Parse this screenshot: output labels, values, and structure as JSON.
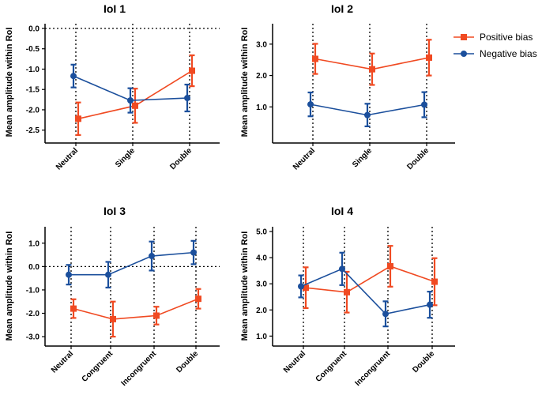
{
  "legend": {
    "positive_label": "Positive bias",
    "negative_label": "Negative bias",
    "position": "top-right"
  },
  "colors": {
    "positive": "#f04a22",
    "negative": "#1b4f9c"
  },
  "chart_data": [
    {
      "type": "line",
      "title": "IoI 1",
      "ylabel": "Mean amplitude within RoI",
      "categories": [
        "Neutral",
        "Single",
        "Double"
      ],
      "ylim": [
        -2.7,
        0
      ],
      "yticks": [
        0.0,
        -0.5,
        -1.0,
        -1.5,
        -2.0,
        -2.5
      ],
      "ytick_labels": [
        "0.0",
        "-0.5",
        "-1.0",
        "-1.5",
        "-2.0",
        "-2.5"
      ],
      "zero_line": true,
      "series": [
        {
          "name": "Positive bias",
          "values": [
            -2.22,
            -1.9,
            -1.04
          ],
          "errors": [
            0.4,
            0.42,
            0.38
          ]
        },
        {
          "name": "Negative bias",
          "values": [
            -1.17,
            -1.77,
            -1.71
          ],
          "errors": [
            0.28,
            0.3,
            0.33
          ]
        }
      ]
    },
    {
      "type": "line",
      "title": "IoI 2",
      "ylabel": "Mean amplitude within RoI",
      "categories": [
        "Neutral",
        "Single",
        "Double"
      ],
      "ylim": [
        0,
        3.5
      ],
      "yticks": [
        1.0,
        2.0,
        3.0
      ],
      "ytick_labels": [
        "1.0",
        "2.0",
        "3.0"
      ],
      "zero_line": false,
      "series": [
        {
          "name": "Positive bias",
          "values": [
            2.53,
            2.2,
            2.57
          ],
          "errors": [
            0.48,
            0.5,
            0.57
          ]
        },
        {
          "name": "Negative bias",
          "values": [
            1.08,
            0.74,
            1.07
          ],
          "errors": [
            0.38,
            0.36,
            0.4
          ]
        }
      ]
    },
    {
      "type": "line",
      "title": "IoI 3",
      "ylabel": "Mean amplitude within RoI",
      "categories": [
        "Neutral",
        "Congruent",
        "Incongruent",
        "Double"
      ],
      "ylim": [
        -3.2,
        1.5
      ],
      "yticks": [
        1.0,
        0.0,
        -1.0,
        -2.0,
        -3.0
      ],
      "ytick_labels": [
        "1.0",
        "0.0",
        "-1.0",
        "-2.0",
        "-3.0"
      ],
      "zero_line": true,
      "series": [
        {
          "name": "Positive bias",
          "values": [
            -1.8,
            -2.25,
            -2.1,
            -1.38
          ],
          "errors": [
            0.4,
            0.75,
            0.38,
            0.42
          ]
        },
        {
          "name": "Negative bias",
          "values": [
            -0.35,
            -0.35,
            0.45,
            0.6
          ],
          "errors": [
            0.42,
            0.55,
            0.62,
            0.5
          ]
        }
      ]
    },
    {
      "type": "line",
      "title": "IoI 4",
      "ylabel": "Mean amplitude within RoI",
      "categories": [
        "Neutral",
        "Congruent",
        "Incongruent",
        "Double"
      ],
      "ylim": [
        0.8,
        5.0
      ],
      "yticks": [
        1.0,
        2.0,
        3.0,
        4.0,
        5.0
      ],
      "ytick_labels": [
        "1.0",
        "2.0",
        "3.0",
        "4.0",
        "5.0"
      ],
      "zero_line": false,
      "series": [
        {
          "name": "Positive bias",
          "values": [
            2.85,
            2.68,
            3.67,
            3.08
          ],
          "errors": [
            0.78,
            0.78,
            0.78,
            0.9
          ]
        },
        {
          "name": "Negative bias",
          "values": [
            2.9,
            3.57,
            1.85,
            2.2
          ],
          "errors": [
            0.42,
            0.62,
            0.48,
            0.5
          ]
        }
      ]
    }
  ]
}
